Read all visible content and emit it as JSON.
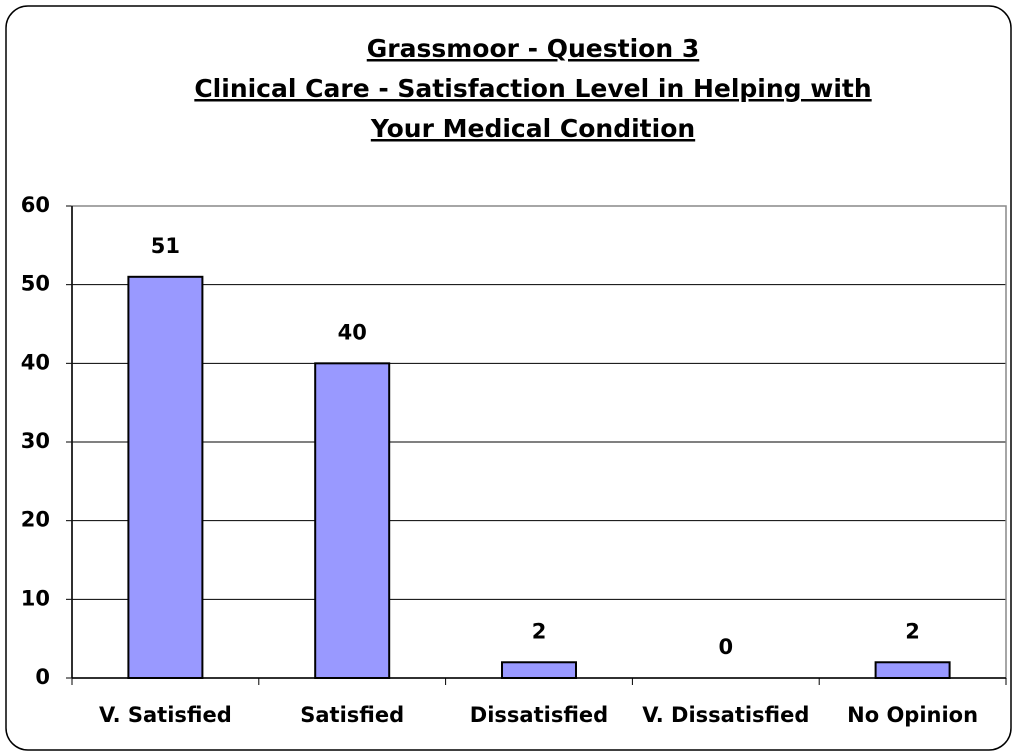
{
  "chart_data": {
    "type": "bar",
    "title": [
      "Grassmoor - Question 3",
      "Clinical Care - Satisfaction Level in Helping with",
      "Your Medical Condition"
    ],
    "categories": [
      "V. Satisfied",
      "Satisfied",
      "Dissatisfied",
      "V. Dissatisfied",
      "No Opinion"
    ],
    "values": [
      51,
      40,
      2,
      0,
      2
    ],
    "color": "#9999ff",
    "ylim": [
      0,
      60
    ],
    "yticks": [
      0,
      10,
      20,
      30,
      40,
      50,
      60
    ],
    "grid": true
  }
}
